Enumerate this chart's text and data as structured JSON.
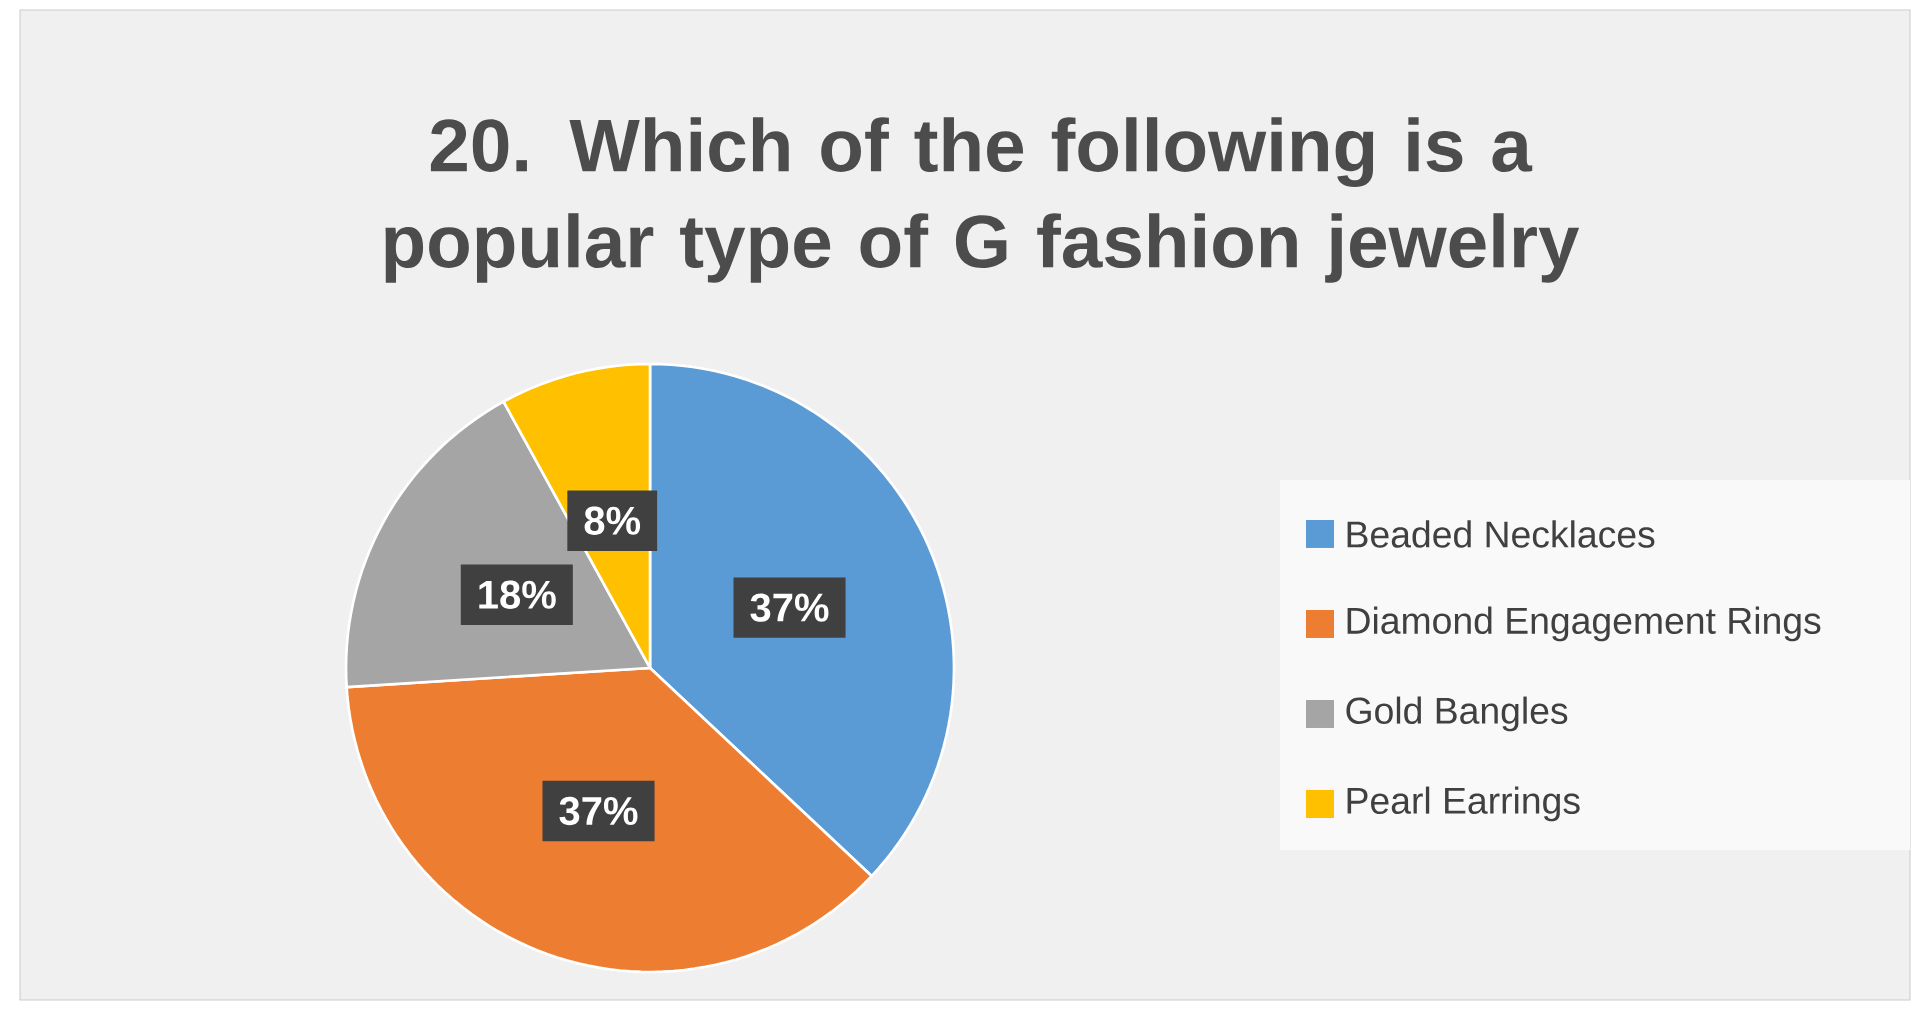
{
  "chart_data": {
    "type": "pie",
    "title": "20. Which of the following is a popular type of G fashion jewelry",
    "categories": [
      "Beaded Necklaces",
      "Diamond Engagement Rings",
      "Gold Bangles",
      "Pearl Earrings"
    ],
    "values": [
      37,
      37,
      18,
      8
    ],
    "colors": [
      "#5b9bd5",
      "#ed7d31",
      "#a5a5a5",
      "#ffc000"
    ],
    "value_labels": [
      "37%",
      "37%",
      "18%",
      "8%"
    ],
    "legend": "right"
  }
}
